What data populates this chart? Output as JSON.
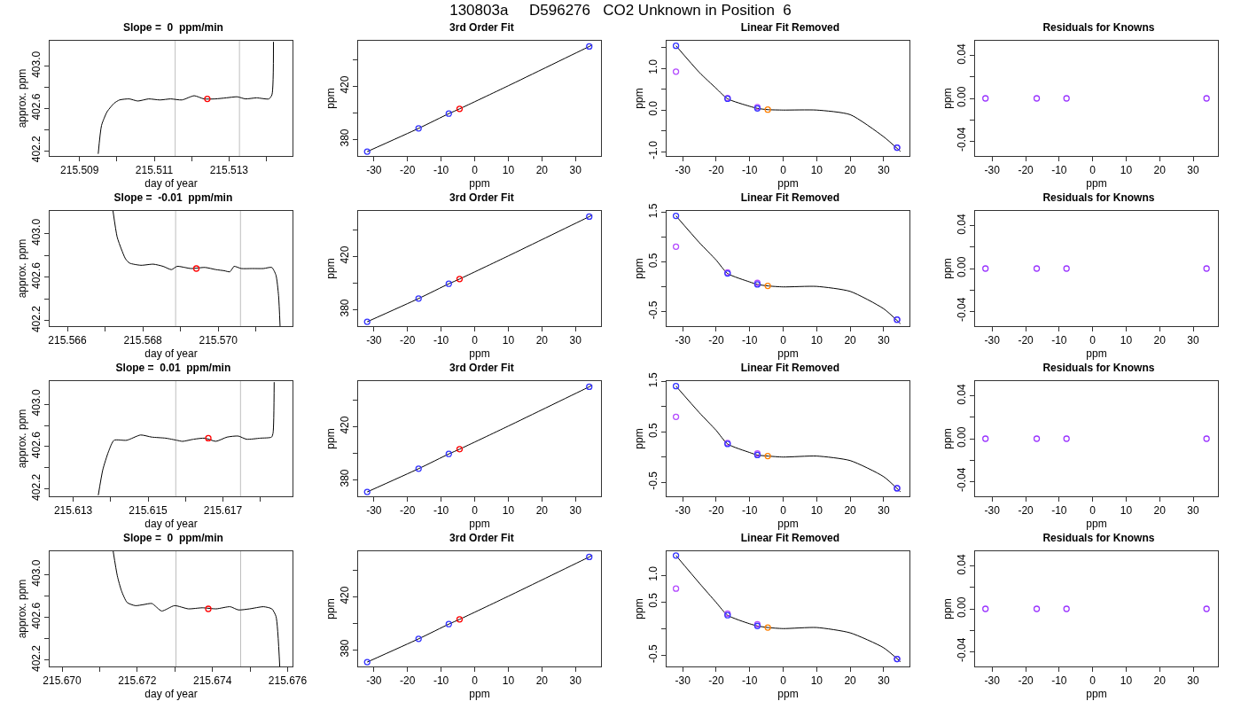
{
  "chart_data": [
    {
      "type": "other",
      "title": "130803a     D596276   CO2 Unknown in Position  6"
    },
    {
      "type": "line",
      "title": "Slope =  0  ppm/min",
      "xlabel": "day of year",
      "ylabel": "approx. ppm",
      "xlim": [
        215.5082,
        215.5147
      ],
      "xticks": [
        215.509,
        {
          "value": 215.51,
          "label": null
        },
        215.511,
        {
          "value": 215.512,
          "label": null
        },
        215.513,
        {
          "value": 215.514,
          "label": null
        }
      ],
      "ylim": [
        402.15,
        403.24
      ],
      "yticks": [
        402.2,
        {
          "value": 402.4,
          "label": null
        },
        402.6,
        {
          "value": 402.8,
          "label": null
        },
        {
          "value": 403,
          "label": "403.0"
        }
      ],
      "grid": false,
      "ref_lines": [
        {
          "axis": "x",
          "value": 215.51156,
          "color": "#bebebe"
        },
        {
          "axis": "x",
          "value": 215.51328,
          "color": "#bebebe"
        }
      ],
      "series": [
        {
          "type": "line",
          "marker": "none",
          "color": "#000000",
          "x": [
            215.5095,
            215.50959,
            215.50974,
            215.50993,
            215.51007,
            215.51033,
            215.51056,
            215.51085,
            215.51115,
            215.51144,
            215.51174,
            215.51207,
            215.51233,
            215.51263,
            215.51293,
            215.51322,
            215.51344,
            215.51374,
            215.51407,
            215.51415,
            215.51419
          ],
          "values": [
            402.17,
            402.44,
            402.57,
            402.65,
            402.68,
            402.69,
            402.67,
            402.69,
            402.68,
            402.69,
            402.68,
            402.72,
            402.69,
            402.69,
            402.7,
            402.71,
            402.69,
            402.7,
            402.69,
            402.73,
            403.23
          ]
        },
        {
          "type": "scatter",
          "marker": "circle",
          "color": "#ff0000",
          "x": [
            215.51242
          ],
          "values": [
            402.69
          ]
        }
      ]
    },
    {
      "type": "line",
      "title": "3rd Order Fit",
      "xlabel": "ppm",
      "ylabel": "ppm",
      "xlim": [
        -34.7,
        37.6
      ],
      "xticks": [
        -30,
        -20,
        -10,
        0,
        10,
        20,
        30
      ],
      "ylim": [
        367.5,
        454.3
      ],
      "yticks": [
        380,
        {
          "value": 400,
          "label": null
        },
        420,
        {
          "value": 440,
          "label": null
        }
      ],
      "grid": false,
      "series": [
        {
          "type": "line",
          "marker": "none",
          "color": "#000000",
          "x": [
            -32,
            -16.7,
            -7.7,
            -4.5,
            10,
            34.1,
            35
          ],
          "values": [
            370.8,
            388.3,
            399.4,
            403.0,
            420.4,
            450.0,
            451.1
          ]
        },
        {
          "type": "scatter",
          "marker": "circle",
          "color": "#3333ff",
          "x": [
            -32,
            -16.7,
            -7.7,
            34.1
          ],
          "values": [
            370.8,
            388.3,
            399.4,
            450.0
          ]
        },
        {
          "type": "scatter",
          "marker": "circle",
          "color": "#ff0000",
          "x": [
            -4.5
          ],
          "values": [
            403.0
          ]
        }
      ]
    },
    {
      "type": "line",
      "title": "Linear Fit Removed",
      "xlabel": "ppm",
      "ylabel": "ppm",
      "xlim": [
        -34.8,
        37.7
      ],
      "xticks": [
        -30,
        -20,
        -10,
        0,
        10,
        20,
        30
      ],
      "ylim": [
        -1.1,
        1.66
      ],
      "yticks": [
        {
          "value": -1,
          "label": "-1.0"
        },
        {
          "value": -0.5,
          "label": null
        },
        {
          "value": 0,
          "label": "0.0"
        },
        {
          "value": 0.5,
          "label": null
        },
        {
          "value": 1,
          "label": "1.0"
        },
        {
          "value": 1.5,
          "label": null
        }
      ],
      "grid": false,
      "series": [
        {
          "type": "line",
          "marker": "none",
          "color": "#000000",
          "x": [
            -32,
            -25,
            -20,
            -16.6,
            -10,
            -7.7,
            -4.6,
            0,
            10,
            20,
            30,
            35
          ],
          "values": [
            1.54,
            0.9,
            0.52,
            0.27,
            0.09,
            0.04,
            0.01,
            0,
            0,
            -0.11,
            -0.64,
            -0.99
          ]
        },
        {
          "type": "scatter",
          "marker": "circle",
          "color": "#b44cff",
          "x": [
            -32,
            -16.6,
            -7.7,
            34
          ],
          "values": [
            0.92,
            0.29,
            0.07,
            -0.9
          ]
        },
        {
          "type": "scatter",
          "marker": "circle",
          "color": "#3333ff",
          "x": [
            -32,
            -16.6,
            -7.7,
            34
          ],
          "values": [
            1.54,
            0.27,
            0.04,
            -0.9
          ]
        },
        {
          "type": "scatter",
          "marker": "circle",
          "color": "#ff7f00",
          "x": [
            -4.6
          ],
          "values": [
            0.01
          ]
        }
      ]
    },
    {
      "type": "scatter",
      "title": "Residuals for Knowns",
      "xlabel": "ppm",
      "ylabel": "ppm",
      "xlim": [
        -35.1,
        37.4
      ],
      "xticks": [
        -30,
        -20,
        -10,
        0,
        10,
        20,
        30
      ],
      "ylim": [
        -0.054,
        0.054
      ],
      "yticks": [
        -0.04,
        {
          "value": -0.02,
          "label": null
        },
        {
          "value": 0,
          "label": "0.00"
        },
        {
          "value": 0.02,
          "label": null
        },
        0.04
      ],
      "grid": false,
      "series": [
        {
          "type": "scatter",
          "marker": "circle",
          "color": "#9933ff",
          "x": [
            -32,
            -16.7,
            -7.8,
            34
          ],
          "values": [
            0,
            0,
            0,
            0
          ]
        }
      ]
    },
    {
      "type": "line",
      "title": "Slope =  -0.01  ppm/min",
      "xlabel": "day of year",
      "ylabel": "approx. ppm",
      "xlim": [
        215.56553,
        215.57197
      ],
      "xticks": [
        215.566,
        {
          "value": 215.567,
          "label": null
        },
        215.568,
        {
          "value": 215.569,
          "label": null
        },
        {
          "value": 215.57,
          "label": "215.570"
        },
        {
          "value": 215.571,
          "label": null
        }
      ],
      "ylim": [
        402.15,
        403.21
      ],
      "yticks": [
        402.2,
        {
          "value": 402.4,
          "label": null
        },
        402.6,
        {
          "value": 402.8,
          "label": null
        },
        {
          "value": 403,
          "label": "403.0"
        }
      ],
      "grid": false,
      "ref_lines": [
        {
          "axis": "x",
          "value": 215.56887,
          "color": "#bebebe"
        },
        {
          "axis": "x",
          "value": 215.57059,
          "color": "#bebebe"
        }
      ],
      "series": [
        {
          "type": "line",
          "marker": "none",
          "color": "#000000",
          "x": [
            215.56721,
            215.56732,
            215.56743,
            215.56754,
            215.56765,
            215.56795,
            215.56828,
            215.56854,
            215.56876,
            215.56891,
            215.56928,
            215.56965,
            215.56994,
            215.57016,
            215.57031,
            215.57042,
            215.57061,
            215.5709,
            215.5712,
            215.57142,
            215.57153,
            215.5716,
            215.57164
          ],
          "values": [
            403.21,
            402.97,
            402.86,
            402.77,
            402.73,
            402.71,
            402.72,
            402.7,
            402.67,
            402.7,
            402.68,
            402.69,
            402.67,
            402.66,
            402.65,
            402.7,
            402.68,
            402.68,
            402.68,
            402.69,
            402.62,
            402.43,
            402.15
          ]
        },
        {
          "type": "scatter",
          "marker": "circle",
          "color": "#ff0000",
          "x": [
            215.56942
          ],
          "values": [
            402.68
          ]
        }
      ]
    },
    {
      "type": "line",
      "title": "3rd Order Fit",
      "xlabel": "ppm",
      "ylabel": "ppm",
      "xlim": [
        -34.7,
        37.6
      ],
      "xticks": [
        -30,
        -20,
        -10,
        0,
        10,
        20,
        30
      ],
      "ylim": [
        367.5,
        454.3
      ],
      "yticks": [
        380,
        {
          "value": 400,
          "label": null
        },
        420,
        {
          "value": 440,
          "label": null
        }
      ],
      "grid": false,
      "series": [
        {
          "type": "line",
          "marker": "none",
          "color": "#000000",
          "x": [
            -32,
            -16.7,
            -7.7,
            -4.5,
            10,
            34.1,
            35
          ],
          "values": [
            370.8,
            388.3,
            399.4,
            403.0,
            420.4,
            450.0,
            451.1
          ]
        },
        {
          "type": "scatter",
          "marker": "circle",
          "color": "#3333ff",
          "x": [
            -32,
            -16.7,
            -7.7,
            34.1
          ],
          "values": [
            370.8,
            388.3,
            399.4,
            450.0
          ]
        },
        {
          "type": "scatter",
          "marker": "circle",
          "color": "#ff0000",
          "x": [
            -4.5
          ],
          "values": [
            403.0
          ]
        }
      ]
    },
    {
      "type": "line",
      "title": "Linear Fit Removed",
      "xlabel": "ppm",
      "ylabel": "ppm",
      "xlim": [
        -34.8,
        37.7
      ],
      "xticks": [
        -30,
        -20,
        -10,
        0,
        10,
        20,
        30
      ],
      "ylim": [
        -0.79,
        1.53
      ],
      "yticks": [
        -0.5,
        {
          "value": 0,
          "label": null
        },
        0.5,
        {
          "value": 1,
          "label": null
        },
        1.5
      ],
      "grid": false,
      "series": [
        {
          "type": "line",
          "marker": "none",
          "color": "#000000",
          "x": [
            -32,
            -25,
            -20,
            -16.6,
            -10,
            -7.7,
            -4.6,
            0,
            10,
            20,
            30,
            35
          ],
          "values": [
            1.43,
            0.89,
            0.54,
            0.27,
            0.1,
            0.05,
            0.02,
            0,
            0.01,
            -0.09,
            -0.44,
            -0.74
          ]
        },
        {
          "type": "scatter",
          "marker": "circle",
          "color": "#b44cff",
          "x": [
            -32,
            -16.6,
            -7.7,
            34
          ],
          "values": [
            0.81,
            0.29,
            0.08,
            -0.66
          ]
        },
        {
          "type": "scatter",
          "marker": "circle",
          "color": "#3333ff",
          "x": [
            -32,
            -16.6,
            -7.7,
            34
          ],
          "values": [
            1.43,
            0.27,
            0.05,
            -0.66
          ]
        },
        {
          "type": "scatter",
          "marker": "circle",
          "color": "#ff7f00",
          "x": [
            -4.6
          ],
          "values": [
            0.02
          ]
        }
      ]
    },
    {
      "type": "scatter",
      "title": "Residuals for Knowns",
      "xlabel": "ppm",
      "ylabel": "ppm",
      "xlim": [
        -35.1,
        37.4
      ],
      "xticks": [
        -30,
        -20,
        -10,
        0,
        10,
        20,
        30
      ],
      "ylim": [
        -0.054,
        0.054
      ],
      "yticks": [
        -0.04,
        {
          "value": -0.02,
          "label": null
        },
        {
          "value": 0,
          "label": "0.00"
        },
        {
          "value": 0.02,
          "label": null
        },
        0.04
      ],
      "grid": false,
      "series": [
        {
          "type": "scatter",
          "marker": "circle",
          "color": "#9933ff",
          "x": [
            -32,
            -16.7,
            -7.8,
            34
          ],
          "values": [
            0,
            0,
            0,
            0
          ]
        }
      ]
    },
    {
      "type": "line",
      "title": "Slope =  0.01  ppm/min",
      "xlabel": "day of year",
      "ylabel": "approx. ppm",
      "xlim": [
        215.61237,
        215.61886
      ],
      "xticks": [
        215.613,
        {
          "value": 215.614,
          "label": null
        },
        215.615,
        {
          "value": 215.616,
          "label": null
        },
        215.617,
        {
          "value": 215.618,
          "label": null
        }
      ],
      "ylim": [
        402.13,
        403.22
      ],
      "yticks": [
        402.2,
        {
          "value": 402.4,
          "label": null
        },
        402.6,
        {
          "value": 402.8,
          "label": null
        },
        {
          "value": 403,
          "label": "403.0"
        }
      ],
      "grid": false,
      "ref_lines": [
        {
          "axis": "x",
          "value": 215.61574,
          "color": "#bebebe"
        },
        {
          "axis": "x",
          "value": 215.61747,
          "color": "#bebebe"
        }
      ],
      "series": [
        {
          "type": "line",
          "marker": "none",
          "color": "#000000",
          "x": [
            215.61367,
            215.61379,
            215.61394,
            215.61409,
            215.61443,
            215.6148,
            215.6151,
            215.61547,
            215.61577,
            215.61592,
            215.61622,
            215.61652,
            215.61681,
            215.61711,
            215.61741,
            215.61763,
            215.618,
            215.6183,
            215.61834,
            215.61837
          ],
          "values": [
            402.14,
            402.38,
            402.55,
            402.66,
            402.66,
            402.71,
            402.69,
            402.68,
            402.66,
            402.65,
            402.67,
            402.68,
            402.65,
            402.69,
            402.7,
            402.67,
            402.68,
            402.69,
            402.73,
            403.21
          ]
        },
        {
          "type": "scatter",
          "marker": "circle",
          "color": "#ff0000",
          "x": [
            215.61661
          ],
          "values": [
            402.68
          ]
        }
      ]
    },
    {
      "type": "line",
      "title": "3rd Order Fit",
      "xlabel": "ppm",
      "ylabel": "ppm",
      "xlim": [
        -34.7,
        37.6
      ],
      "xticks": [
        -30,
        -20,
        -10,
        0,
        10,
        20,
        30
      ],
      "ylim": [
        367.5,
        454.3
      ],
      "yticks": [
        380,
        {
          "value": 400,
          "label": null
        },
        420,
        {
          "value": 440,
          "label": null
        }
      ],
      "grid": false,
      "series": [
        {
          "type": "line",
          "marker": "none",
          "color": "#000000",
          "x": [
            -32,
            -16.7,
            -7.7,
            -4.5,
            10,
            34.1,
            35
          ],
          "values": [
            370.8,
            388.3,
            399.4,
            403.0,
            420.4,
            450.0,
            451.1
          ]
        },
        {
          "type": "scatter",
          "marker": "circle",
          "color": "#3333ff",
          "x": [
            -32,
            -16.7,
            -7.7,
            34.1
          ],
          "values": [
            370.8,
            388.3,
            399.4,
            450.0
          ]
        },
        {
          "type": "scatter",
          "marker": "circle",
          "color": "#ff0000",
          "x": [
            -4.5
          ],
          "values": [
            403.0
          ]
        }
      ]
    },
    {
      "type": "line",
      "title": "Linear Fit Removed",
      "xlabel": "ppm",
      "ylabel": "ppm",
      "xlim": [
        -34.8,
        37.7
      ],
      "xticks": [
        -30,
        -20,
        -10,
        0,
        10,
        20,
        30
      ],
      "ylim": [
        -0.78,
        1.51
      ],
      "yticks": [
        -0.5,
        {
          "value": 0,
          "label": null
        },
        0.5,
        {
          "value": 1,
          "label": null
        },
        1.5
      ],
      "grid": false,
      "series": [
        {
          "type": "line",
          "marker": "none",
          "color": "#000000",
          "x": [
            -32,
            -25,
            -20,
            -16.6,
            -10,
            -7.7,
            -4.6,
            0,
            10,
            20,
            30,
            35
          ],
          "values": [
            1.41,
            0.88,
            0.53,
            0.26,
            0.09,
            0.04,
            0.02,
            0,
            0.02,
            -0.07,
            -0.39,
            -0.69
          ]
        },
        {
          "type": "scatter",
          "marker": "circle",
          "color": "#b44cff",
          "x": [
            -32,
            -16.6,
            -7.7,
            34
          ],
          "values": [
            0.8,
            0.28,
            0.07,
            -0.62
          ]
        },
        {
          "type": "scatter",
          "marker": "circle",
          "color": "#3333ff",
          "x": [
            -32,
            -16.6,
            -7.7,
            34
          ],
          "values": [
            1.41,
            0.26,
            0.04,
            -0.62
          ]
        },
        {
          "type": "scatter",
          "marker": "circle",
          "color": "#ff7f00",
          "x": [
            -4.6
          ],
          "values": [
            0.02
          ]
        }
      ]
    },
    {
      "type": "scatter",
      "title": "Residuals for Knowns",
      "xlabel": "ppm",
      "ylabel": "ppm",
      "xlim": [
        -35.1,
        37.4
      ],
      "xticks": [
        -30,
        -20,
        -10,
        0,
        10,
        20,
        30
      ],
      "ylim": [
        -0.054,
        0.054
      ],
      "yticks": [
        -0.04,
        {
          "value": -0.02,
          "label": null
        },
        {
          "value": 0,
          "label": "0.00"
        },
        {
          "value": 0.02,
          "label": null
        },
        0.04
      ],
      "grid": false,
      "series": [
        {
          "type": "scatter",
          "marker": "circle",
          "color": "#9933ff",
          "x": [
            -32,
            -16.7,
            -7.8,
            34
          ],
          "values": [
            0,
            0,
            0,
            0
          ]
        }
      ]
    },
    {
      "type": "line",
      "title": "Slope =  0  ppm/min",
      "xlabel": "day of year",
      "ylabel": "approx. ppm",
      "xlim": [
        215.66967,
        215.67613
      ],
      "xticks": [
        {
          "value": 215.67,
          "label": "215.670"
        },
        {
          "value": 215.671,
          "label": null
        },
        215.672,
        {
          "value": 215.673,
          "label": null
        },
        215.674,
        {
          "value": 215.675,
          "label": null
        },
        215.676
      ],
      "ylim": [
        402.14,
        403.22
      ],
      "yticks": [
        402.2,
        {
          "value": 402.4,
          "label": null
        },
        402.6,
        {
          "value": 402.8,
          "label": null
        },
        {
          "value": 403,
          "label": "403.0"
        }
      ],
      "grid": false,
      "ref_lines": [
        {
          "axis": "x",
          "value": 215.67303,
          "color": "#bebebe"
        },
        {
          "axis": "x",
          "value": 215.67475,
          "color": "#bebebe"
        }
      ],
      "series": [
        {
          "type": "line",
          "marker": "none",
          "color": "#000000",
          "x": [
            215.67136,
            215.67147,
            215.67158,
            215.67173,
            215.67195,
            215.67217,
            215.67239,
            215.67265,
            215.67299,
            215.67336,
            215.67373,
            215.6741,
            215.67447,
            215.67469,
            215.67499,
            215.67536,
            215.67558,
            215.67569,
            215.67579
          ],
          "values": [
            403.22,
            402.99,
            402.85,
            402.74,
            402.71,
            402.72,
            402.73,
            402.66,
            402.71,
            402.68,
            402.69,
            402.68,
            402.7,
            402.67,
            402.68,
            402.7,
            402.68,
            402.61,
            402.14
          ]
        },
        {
          "type": "scatter",
          "marker": "circle",
          "color": "#ff0000",
          "x": [
            215.67389
          ],
          "values": [
            402.68
          ]
        }
      ]
    },
    {
      "type": "line",
      "title": "3rd Order Fit",
      "xlabel": "ppm",
      "ylabel": "ppm",
      "xlim": [
        -34.7,
        37.6
      ],
      "xticks": [
        -30,
        -20,
        -10,
        0,
        10,
        20,
        30
      ],
      "ylim": [
        367.5,
        454.3
      ],
      "yticks": [
        380,
        {
          "value": 400,
          "label": null
        },
        420,
        {
          "value": 440,
          "label": null
        }
      ],
      "grid": false,
      "series": [
        {
          "type": "line",
          "marker": "none",
          "color": "#000000",
          "x": [
            -32,
            -16.7,
            -7.7,
            -4.5,
            10,
            34.1,
            35
          ],
          "values": [
            370.8,
            388.3,
            399.4,
            403.0,
            420.4,
            450.0,
            451.1
          ]
        },
        {
          "type": "scatter",
          "marker": "circle",
          "color": "#3333ff",
          "x": [
            -32,
            -16.7,
            -7.7,
            34.1
          ],
          "values": [
            370.8,
            388.3,
            399.4,
            450.0
          ]
        },
        {
          "type": "scatter",
          "marker": "circle",
          "color": "#ff0000",
          "x": [
            -4.5
          ],
          "values": [
            403.0
          ]
        }
      ]
    },
    {
      "type": "line",
      "title": "Linear Fit Removed",
      "xlabel": "ppm",
      "ylabel": "ppm",
      "xlim": [
        -34.8,
        37.7
      ],
      "xticks": [
        -30,
        -20,
        -10,
        0,
        10,
        20,
        30
      ],
      "ylim": [
        -0.71,
        1.45
      ],
      "yticks": [
        -0.5,
        {
          "value": 0,
          "label": null
        },
        0.5,
        {
          "value": 1,
          "label": "1.0"
        }
      ],
      "grid": false,
      "series": [
        {
          "type": "line",
          "marker": "none",
          "color": "#000000",
          "x": [
            -32,
            -25,
            -20,
            -16.6,
            -10,
            -7.7,
            -4.6,
            0,
            10,
            20,
            30,
            35
          ],
          "values": [
            1.37,
            0.85,
            0.49,
            0.25,
            0.09,
            0.05,
            0.02,
            0,
            0.02,
            -0.08,
            -0.36,
            -0.62
          ]
        },
        {
          "type": "scatter",
          "marker": "circle",
          "color": "#b44cff",
          "x": [
            -32,
            -16.6,
            -7.7,
            34
          ],
          "values": [
            0.75,
            0.28,
            0.08,
            -0.57
          ]
        },
        {
          "type": "scatter",
          "marker": "circle",
          "color": "#3333ff",
          "x": [
            -32,
            -16.6,
            -7.7,
            34
          ],
          "values": [
            1.37,
            0.25,
            0.05,
            -0.57
          ]
        },
        {
          "type": "scatter",
          "marker": "circle",
          "color": "#ff7f00",
          "x": [
            -4.6
          ],
          "values": [
            0.02
          ]
        }
      ]
    },
    {
      "type": "scatter",
      "title": "Residuals for Knowns",
      "xlabel": "ppm",
      "ylabel": "ppm",
      "xlim": [
        -35.1,
        37.4
      ],
      "xticks": [
        -30,
        -20,
        -10,
        0,
        10,
        20,
        30
      ],
      "ylim": [
        -0.054,
        0.054
      ],
      "yticks": [
        -0.04,
        {
          "value": -0.02,
          "label": null
        },
        {
          "value": 0,
          "label": "0.00"
        },
        {
          "value": 0.02,
          "label": null
        },
        0.04
      ],
      "grid": false,
      "series": [
        {
          "type": "scatter",
          "marker": "circle",
          "color": "#9933ff",
          "x": [
            -32,
            -16.7,
            -7.8,
            34
          ],
          "values": [
            0,
            0,
            0,
            0
          ]
        }
      ]
    }
  ]
}
